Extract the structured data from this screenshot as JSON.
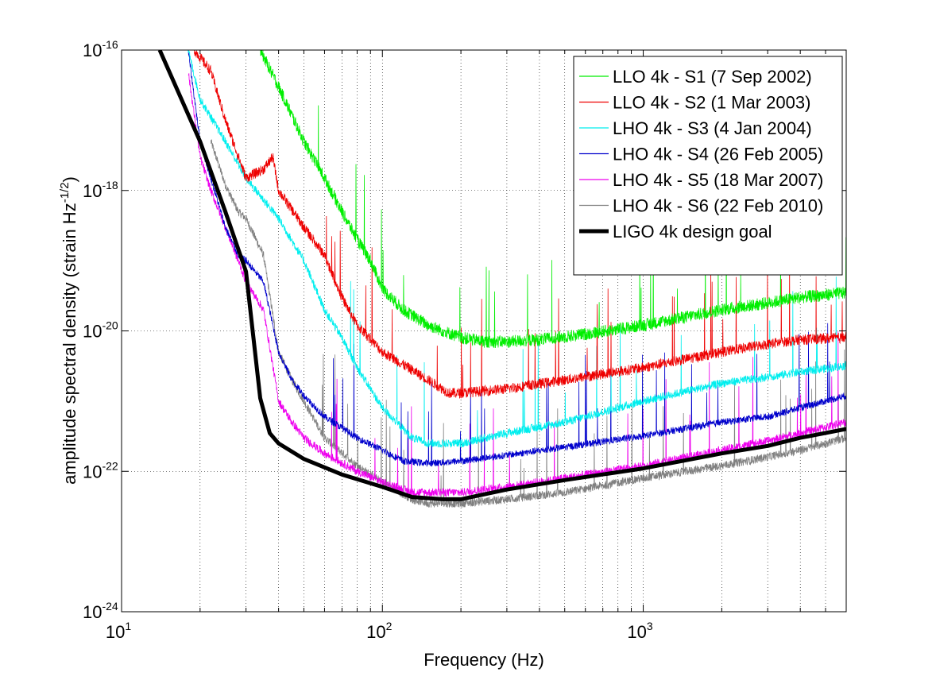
{
  "chart_data": {
    "type": "line",
    "title": "",
    "xlabel": "Frequency (Hz)",
    "ylabel_parts": {
      "main": "amplitude spectral density (strain Hz",
      "exponent": "-1/2",
      "close": ")"
    },
    "x_scale": "log",
    "y_scale": "log",
    "xlim": [
      10,
      6000
    ],
    "ylim": [
      1e-24,
      1e-16
    ],
    "x_ticks": [
      {
        "value": 10,
        "base": "10",
        "exp": "1"
      },
      {
        "value": 100,
        "base": "10",
        "exp": "2"
      },
      {
        "value": 1000,
        "base": "10",
        "exp": "3"
      }
    ],
    "y_ticks": [
      {
        "value": 1e-24,
        "base": "10",
        "exp": "-24"
      },
      {
        "value": 1e-22,
        "base": "10",
        "exp": "-22"
      },
      {
        "value": 1e-20,
        "base": "10",
        "exp": "-20"
      },
      {
        "value": 1e-18,
        "base": "10",
        "exp": "-18"
      },
      {
        "value": 1e-16,
        "base": "10",
        "exp": "-16"
      }
    ],
    "grid": true,
    "legend_position": "top-right",
    "series": [
      {
        "name": "LLO 4k - S1 (7 Sep 2002)",
        "color": "#00ee00",
        "noise": 0.18,
        "points": [
          [
            34,
            1e-16
          ],
          [
            40,
            3e-17
          ],
          [
            50,
            5e-18
          ],
          [
            60,
            1.5e-18
          ],
          [
            70,
            5e-19
          ],
          [
            80,
            2e-19
          ],
          [
            90,
            1e-19
          ],
          [
            100,
            4e-20
          ],
          [
            120,
            2e-20
          ],
          [
            150,
            1.2e-20
          ],
          [
            200,
            8e-21
          ],
          [
            250,
            7e-21
          ],
          [
            300,
            7e-21
          ],
          [
            400,
            7.5e-21
          ],
          [
            600,
            9e-21
          ],
          [
            1000,
            1.2e-20
          ],
          [
            2000,
            2e-20
          ],
          [
            3000,
            2.5e-20
          ],
          [
            4000,
            3e-20
          ],
          [
            6000,
            3.5e-20
          ]
        ]
      },
      {
        "name": "LLO 4k - S2 (1 Mar 2003)",
        "color": "#ee0000",
        "noise": 0.15,
        "points": [
          [
            19,
            1e-16
          ],
          [
            22,
            5e-17
          ],
          [
            25,
            1e-17
          ],
          [
            30,
            1.5e-18
          ],
          [
            35,
            2e-18
          ],
          [
            38,
            3e-18
          ],
          [
            40,
            1e-18
          ],
          [
            50,
            3e-19
          ],
          [
            60,
            1.2e-19
          ],
          [
            70,
            3e-20
          ],
          [
            80,
            1.2e-20
          ],
          [
            100,
            5e-21
          ],
          [
            150,
            2e-21
          ],
          [
            180,
            1.3e-21
          ],
          [
            200,
            1.3e-21
          ],
          [
            300,
            1.5e-21
          ],
          [
            500,
            2e-21
          ],
          [
            1000,
            3e-21
          ],
          [
            2000,
            5e-21
          ],
          [
            3000,
            6.5e-21
          ],
          [
            4000,
            7.5e-21
          ],
          [
            6000,
            8e-21
          ]
        ]
      },
      {
        "name": "LHO 4k - S3 (4 Jan 2004)",
        "color": "#00eeee",
        "noise": 0.12,
        "points": [
          [
            18,
            1e-16
          ],
          [
            20,
            2e-17
          ],
          [
            25,
            5e-18
          ],
          [
            30,
            1.5e-18
          ],
          [
            40,
            4e-19
          ],
          [
            50,
            1e-19
          ],
          [
            60,
            2e-20
          ],
          [
            70,
            8e-21
          ],
          [
            80,
            3e-21
          ],
          [
            100,
            8e-22
          ],
          [
            130,
            3e-22
          ],
          [
            150,
            2.5e-22
          ],
          [
            200,
            2.5e-22
          ],
          [
            300,
            3.5e-22
          ],
          [
            500,
            5e-22
          ],
          [
            1000,
            1e-21
          ],
          [
            2000,
            1.8e-21
          ],
          [
            3000,
            2.2e-21
          ],
          [
            4000,
            2.6e-21
          ],
          [
            6000,
            3.2e-21
          ]
        ]
      },
      {
        "name": "LHO 4k - S4 (26 Feb 2005)",
        "color": "#0000cc",
        "noise": 0.1,
        "points": [
          [
            18,
            1e-16
          ],
          [
            20,
            5e-18
          ],
          [
            22,
            1.5e-18
          ],
          [
            25,
            3e-19
          ],
          [
            28,
            1.2e-19
          ],
          [
            30,
            1e-19
          ],
          [
            35,
            5e-20
          ],
          [
            40,
            5e-21
          ],
          [
            45,
            2e-21
          ],
          [
            50,
            1.2e-21
          ],
          [
            60,
            6e-22
          ],
          [
            80,
            3e-22
          ],
          [
            100,
            2e-22
          ],
          [
            120,
            1.4e-22
          ],
          [
            150,
            1.3e-22
          ],
          [
            200,
            1.4e-22
          ],
          [
            300,
            1.7e-22
          ],
          [
            500,
            2.2e-22
          ],
          [
            1000,
            3.2e-22
          ],
          [
            2000,
            5e-22
          ],
          [
            3000,
            6e-22
          ],
          [
            4000,
            8e-22
          ],
          [
            6000,
            1.2e-21
          ]
        ]
      },
      {
        "name": "LHO 4k - S5 (18 Mar 2007)",
        "color": "#ee00ee",
        "noise": 0.12,
        "points": [
          [
            18,
            5e-17
          ],
          [
            20,
            3e-18
          ],
          [
            22,
            1e-18
          ],
          [
            25,
            3e-19
          ],
          [
            28,
            1e-19
          ],
          [
            30,
            5e-20
          ],
          [
            35,
            2e-20
          ],
          [
            40,
            1e-21
          ],
          [
            45,
            5e-22
          ],
          [
            50,
            3e-22
          ],
          [
            60,
            1.8e-22
          ],
          [
            80,
            1e-22
          ],
          [
            100,
            7e-23
          ],
          [
            130,
            5e-23
          ],
          [
            150,
            5e-23
          ],
          [
            200,
            5e-23
          ],
          [
            300,
            6e-23
          ],
          [
            500,
            8e-23
          ],
          [
            1000,
            1.2e-22
          ],
          [
            2000,
            2e-22
          ],
          [
            3000,
            2.7e-22
          ],
          [
            4000,
            3.5e-22
          ],
          [
            6000,
            5e-22
          ]
        ]
      },
      {
        "name": "LHO 4k - S6 (22 Feb 2010)",
        "color": "#808080",
        "noise": 0.12,
        "points": [
          [
            22,
            5e-18
          ],
          [
            25,
            1.2e-18
          ],
          [
            28,
            5e-19
          ],
          [
            30,
            4e-19
          ],
          [
            35,
            1.2e-19
          ],
          [
            40,
            5e-21
          ],
          [
            45,
            2e-21
          ],
          [
            50,
            1e-21
          ],
          [
            60,
            3e-22
          ],
          [
            80,
            1.2e-22
          ],
          [
            100,
            7e-23
          ],
          [
            130,
            4e-23
          ],
          [
            150,
            3.5e-23
          ],
          [
            200,
            3.5e-23
          ],
          [
            300,
            4e-23
          ],
          [
            500,
            5e-23
          ],
          [
            1000,
            8e-23
          ],
          [
            2000,
            1.2e-22
          ],
          [
            3000,
            1.6e-22
          ],
          [
            4000,
            2e-22
          ],
          [
            6000,
            3e-22
          ]
        ]
      },
      {
        "name": "LIGO 4k design goal",
        "color": "#000000",
        "noise": 0,
        "points": [
          [
            14,
            1e-16
          ],
          [
            20,
            5e-18
          ],
          [
            25,
            5e-19
          ],
          [
            30,
            7e-20
          ],
          [
            34,
            1.1e-21
          ],
          [
            37,
            3.5e-22
          ],
          [
            40,
            2.5e-22
          ],
          [
            50,
            1.5e-22
          ],
          [
            70,
            9e-23
          ],
          [
            100,
            6e-23
          ],
          [
            130,
            4.3e-23
          ],
          [
            170,
            4e-23
          ],
          [
            200,
            4e-23
          ],
          [
            300,
            5.5e-23
          ],
          [
            500,
            7.5e-23
          ],
          [
            1000,
            1.1e-22
          ],
          [
            2000,
            1.8e-22
          ],
          [
            3000,
            2.3e-22
          ],
          [
            4000,
            3e-22
          ],
          [
            6000,
            4e-22
          ]
        ]
      }
    ]
  }
}
